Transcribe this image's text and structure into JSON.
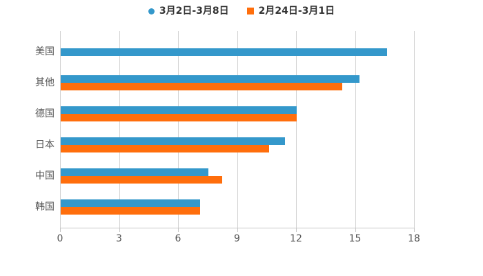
{
  "legend": {
    "items": [
      {
        "label": "3月2日-3月8日",
        "marker": "circle",
        "color": "#3498CB"
      },
      {
        "label": "2月24日-3月1日",
        "marker": "square",
        "color": "#FF6E0C"
      }
    ]
  },
  "chart_data": {
    "type": "bar",
    "orientation": "horizontal",
    "title": "",
    "xlabel": "",
    "ylabel": "",
    "categories": [
      "美国",
      "其他",
      "德国",
      "日本",
      "中国",
      "韩国"
    ],
    "series": [
      {
        "name": "3月2日-3月8日",
        "color": "#3498CB",
        "values": [
          16.6,
          15.2,
          12.0,
          11.4,
          7.5,
          7.1
        ]
      },
      {
        "name": "2月24日-3月1日",
        "color": "#FF6E0C",
        "values": [
          null,
          14.3,
          12.0,
          10.6,
          8.2,
          7.1
        ]
      }
    ],
    "xlim": [
      0,
      18
    ],
    "xticks": [
      0,
      3,
      6,
      9,
      12,
      15,
      18
    ],
    "grid": true,
    "legend_position": "top-center",
    "background": "#ffffff",
    "gridline_color": "#d2d2d2",
    "axis_color": "#c6c6c6",
    "label_color": "#555555"
  }
}
